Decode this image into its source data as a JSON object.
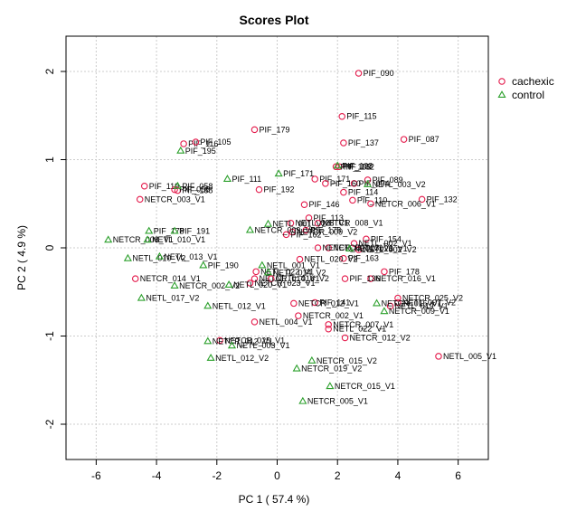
{
  "chart_data": {
    "type": "scatter",
    "title": "Scores Plot",
    "xlabel": "PC 1 ( 57.4 %)",
    "ylabel": "PC 2 ( 4.9 %)",
    "xlim": [
      -7,
      7
    ],
    "ylim": [
      -2.4,
      2.4
    ],
    "xticks": [
      -6,
      -4,
      -2,
      0,
      2,
      4,
      6
    ],
    "yticks": [
      -2,
      -1,
      0,
      1,
      2
    ],
    "grid": true,
    "legend_position": "right",
    "series": [
      {
        "name": "cachexic",
        "color": "#e41a4b",
        "marker": "circle",
        "points": [
          {
            "x": 2.7,
            "y": 1.98,
            "label": "PIF_090"
          },
          {
            "x": 2.15,
            "y": 1.49,
            "label": "PIF_115"
          },
          {
            "x": -0.75,
            "y": 1.34,
            "label": "PIF_179"
          },
          {
            "x": 2.2,
            "y": 1.19,
            "label": "PIF_137"
          },
          {
            "x": 4.2,
            "y": 1.23,
            "label": "PIF_087"
          },
          {
            "x": -3.1,
            "y": 1.18,
            "label": "PIF_116"
          },
          {
            "x": -2.7,
            "y": 1.2,
            "label": "PIF_105"
          },
          {
            "x": 2.05,
            "y": 0.92,
            "label": "PIF_182"
          },
          {
            "x": 1.95,
            "y": 0.92,
            "label": "PIF_103"
          },
          {
            "x": 1.25,
            "y": 0.78,
            "label": "PIF_171"
          },
          {
            "x": 3.0,
            "y": 0.77,
            "label": "PIF_089"
          },
          {
            "x": 2.55,
            "y": 0.73,
            "label": "PIF_094"
          },
          {
            "x": 2.2,
            "y": 0.63,
            "label": "PIF_114"
          },
          {
            "x": 1.6,
            "y": 0.73,
            "label": "PIF_160"
          },
          {
            "x": -0.6,
            "y": 0.66,
            "label": "PIF_192"
          },
          {
            "x": -4.4,
            "y": 0.7,
            "label": "PIF_119"
          },
          {
            "x": -3.3,
            "y": 0.65,
            "label": "PIF_188"
          },
          {
            "x": -3.4,
            "y": 0.66,
            "label": "PIF_058"
          },
          {
            "x": -4.55,
            "y": 0.55,
            "label": "NETCR_003_V1"
          },
          {
            "x": 2.5,
            "y": 0.54,
            "label": "PIF_110"
          },
          {
            "x": 4.8,
            "y": 0.55,
            "label": "PIF_132"
          },
          {
            "x": 3.1,
            "y": 0.5,
            "label": "NETCR_006_V1"
          },
          {
            "x": 0.9,
            "y": 0.49,
            "label": "PIF_146"
          },
          {
            "x": 1.05,
            "y": 0.34,
            "label": "PIF_113"
          },
          {
            "x": 0.45,
            "y": 0.28,
            "label": "NETL_028_V1"
          },
          {
            "x": 1.35,
            "y": 0.28,
            "label": "NETCR_008_V1"
          },
          {
            "x": 0.95,
            "y": 0.2,
            "label": "PIF_178"
          },
          {
            "x": 0.5,
            "y": 0.18,
            "label": "NETCR_009_V2"
          },
          {
            "x": 0.3,
            "y": 0.15,
            "label": "PIF_162"
          },
          {
            "x": 2.95,
            "y": 0.1,
            "label": "PIF_154"
          },
          {
            "x": 2.55,
            "y": 0.05,
            "label": "NETL_002_V1"
          },
          {
            "x": 1.7,
            "y": 0.0,
            "label": "NETCR_013_V1"
          },
          {
            "x": 2.7,
            "y": -0.02,
            "label": "NETL_002_V2"
          },
          {
            "x": 2.2,
            "y": -0.12,
            "label": "PIF_163"
          },
          {
            "x": 1.35,
            "y": 0.0,
            "label": "NETCR_007_V1"
          },
          {
            "x": 0.75,
            "y": -0.13,
            "label": "NETL_020_V2"
          },
          {
            "x": -0.7,
            "y": -0.27,
            "label": "NETL_022_V1"
          },
          {
            "x": -0.75,
            "y": -0.35,
            "label": "NETCR_014_V1"
          },
          {
            "x": -0.2,
            "y": -0.35,
            "label": "NETL_016_V2"
          },
          {
            "x": 3.55,
            "y": -0.27,
            "label": "PIF_178"
          },
          {
            "x": 3.1,
            "y": -0.35,
            "label": "NETCR_016_V1"
          },
          {
            "x": 2.25,
            "y": -0.35,
            "label": "PIF_136"
          },
          {
            "x": -4.7,
            "y": -0.35,
            "label": "NETCR_014_V1"
          },
          {
            "x": -0.9,
            "y": -0.4,
            "label": "NETCR_023_V1"
          },
          {
            "x": 4.0,
            "y": -0.57,
            "label": "NETCR_025_V2"
          },
          {
            "x": 4.0,
            "y": -0.62,
            "label": "NETL_007_V2"
          },
          {
            "x": 3.75,
            "y": -0.66,
            "label": "NETL_019_V1"
          },
          {
            "x": 1.25,
            "y": -0.62,
            "label": "PIF_141"
          },
          {
            "x": 0.55,
            "y": -0.63,
            "label": "NETCR_012_V1"
          },
          {
            "x": 0.7,
            "y": -0.77,
            "label": "NETCR_002_V1"
          },
          {
            "x": -0.75,
            "y": -0.84,
            "label": "NETL_004_V1"
          },
          {
            "x": 1.7,
            "y": -0.87,
            "label": "NETCR_007_V1"
          },
          {
            "x": 1.7,
            "y": -0.92,
            "label": "NETL_022_V1"
          },
          {
            "x": 2.25,
            "y": -1.02,
            "label": "NETCR_012_V2"
          },
          {
            "x": -1.9,
            "y": -1.05,
            "label": "NETCR_025_V1"
          },
          {
            "x": 5.35,
            "y": -1.23,
            "label": "NETL_005_V1"
          }
        ]
      },
      {
        "name": "control",
        "color": "#2ca02c",
        "marker": "triangle",
        "points": [
          {
            "x": 2.0,
            "y": 0.93,
            "label": "PIF_103"
          },
          {
            "x": -3.2,
            "y": 1.1,
            "label": "PIF_195"
          },
          {
            "x": -1.65,
            "y": 0.78,
            "label": "PIF_111"
          },
          {
            "x": 0.05,
            "y": 0.84,
            "label": "PIF_171"
          },
          {
            "x": 3.0,
            "y": 0.72,
            "label": "NETL_003_V2"
          },
          {
            "x": -3.3,
            "y": 0.7,
            "label": "PIF_058"
          },
          {
            "x": -0.3,
            "y": 0.27,
            "label": "NETL_001_V2"
          },
          {
            "x": -0.9,
            "y": 0.2,
            "label": "NETCR_009_V2"
          },
          {
            "x": -4.25,
            "y": 0.19,
            "label": "PIF_178"
          },
          {
            "x": -3.4,
            "y": 0.19,
            "label": "PIF_191"
          },
          {
            "x": -5.6,
            "y": 0.09,
            "label": "NETCR_008_V1"
          },
          {
            "x": -4.3,
            "y": 0.09,
            "label": "NETL_010_V1"
          },
          {
            "x": 2.4,
            "y": -0.01,
            "label": "NETL_028_V1"
          },
          {
            "x": -4.95,
            "y": -0.12,
            "label": "NETL_010_V2"
          },
          {
            "x": -3.9,
            "y": -0.1,
            "label": "NETL_013_V1"
          },
          {
            "x": -2.45,
            "y": -0.2,
            "label": "PIF_190"
          },
          {
            "x": -0.5,
            "y": -0.2,
            "label": "NETL_001_V1"
          },
          {
            "x": -0.3,
            "y": -0.28,
            "label": "NETL_014_V2"
          },
          {
            "x": -3.4,
            "y": -0.43,
            "label": "NETCR_002_V2"
          },
          {
            "x": -1.6,
            "y": -0.42,
            "label": "NETL_020_V1"
          },
          {
            "x": -4.5,
            "y": -0.57,
            "label": "NETL_017_V2"
          },
          {
            "x": -2.3,
            "y": -0.66,
            "label": "NETL_012_V1"
          },
          {
            "x": 3.3,
            "y": -0.63,
            "label": "NETCR_015_V1"
          },
          {
            "x": 3.55,
            "y": -0.72,
            "label": "NETCR_009_V1"
          },
          {
            "x": -2.3,
            "y": -1.06,
            "label": "NETCR_012_V1"
          },
          {
            "x": -1.5,
            "y": -1.11,
            "label": "NETL_003_V1"
          },
          {
            "x": -2.2,
            "y": -1.25,
            "label": "NETL_012_V2"
          },
          {
            "x": 1.15,
            "y": -1.28,
            "label": "NETCR_015_V2"
          },
          {
            "x": 0.65,
            "y": -1.37,
            "label": "NETCR_019_V2"
          },
          {
            "x": 1.75,
            "y": -1.57,
            "label": "NETCR_015_V1"
          },
          {
            "x": 0.85,
            "y": -1.74,
            "label": "NETCR_005_V1"
          }
        ]
      }
    ]
  }
}
